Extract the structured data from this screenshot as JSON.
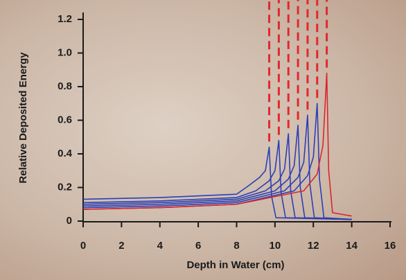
{
  "chart_data": {
    "type": "line",
    "xlabel": "Depth in Water (cm)",
    "ylabel": "Relative Deposited Energy",
    "xlim": [
      0,
      16
    ],
    "xticks": [
      0,
      2,
      4,
      6,
      8,
      10,
      12,
      14,
      16
    ],
    "ylim": [
      0,
      1.2
    ],
    "yticks": [
      0,
      0.2,
      0.4,
      0.6,
      0.8,
      {
        "value": 1,
        "label": "1.0"
      },
      1.2
    ],
    "peak_lines": {
      "color": "#e5272d",
      "dashed": true
    },
    "series": [
      {
        "color": "#2b3fb5",
        "x": [
          0,
          4,
          8,
          8.5,
          9.2,
          9.5,
          9.7,
          9.82,
          10.05,
          14
        ],
        "values": [
          0.13,
          0.14,
          0.16,
          0.2,
          0.26,
          0.3,
          0.44,
          0.15,
          0.02,
          0.01
        ]
      },
      {
        "color": "#2b3fb5",
        "x": [
          0,
          4,
          8,
          9.0,
          9.7,
          10.0,
          10.2,
          10.32,
          10.55,
          14
        ],
        "values": [
          0.11,
          0.12,
          0.14,
          0.18,
          0.24,
          0.3,
          0.48,
          0.17,
          0.02,
          0.01
        ]
      },
      {
        "color": "#2b3fb5",
        "x": [
          0,
          4,
          8,
          9.5,
          10.2,
          10.5,
          10.7,
          10.82,
          11.05,
          14
        ],
        "values": [
          0.1,
          0.11,
          0.13,
          0.18,
          0.24,
          0.31,
          0.52,
          0.18,
          0.02,
          0.01
        ]
      },
      {
        "color": "#2b3fb5",
        "x": [
          0,
          4,
          8,
          10.0,
          10.7,
          11.0,
          11.2,
          11.32,
          11.55,
          14
        ],
        "values": [
          0.09,
          0.1,
          0.12,
          0.18,
          0.25,
          0.33,
          0.57,
          0.2,
          0.02,
          0.01
        ]
      },
      {
        "color": "#2b3fb5",
        "x": [
          0,
          4,
          8,
          10.5,
          11.2,
          11.5,
          11.7,
          11.82,
          12.05,
          14
        ],
        "values": [
          0.08,
          0.09,
          0.11,
          0.18,
          0.26,
          0.35,
          0.63,
          0.22,
          0.02,
          0.01
        ]
      },
      {
        "color": "#2b3fb5",
        "x": [
          0,
          4,
          8,
          11.0,
          11.7,
          12.0,
          12.2,
          12.32,
          12.55,
          14
        ],
        "values": [
          0.07,
          0.08,
          0.1,
          0.18,
          0.27,
          0.38,
          0.7,
          0.25,
          0.02,
          0.01
        ]
      },
      {
        "color": "#d9262b",
        "x": [
          0,
          4,
          8,
          11.5,
          12.2,
          12.5,
          12.7,
          12.8,
          13.0,
          14
        ],
        "values": [
          0.07,
          0.08,
          0.1,
          0.18,
          0.28,
          0.45,
          0.88,
          0.3,
          0.05,
          0.03
        ]
      }
    ]
  }
}
